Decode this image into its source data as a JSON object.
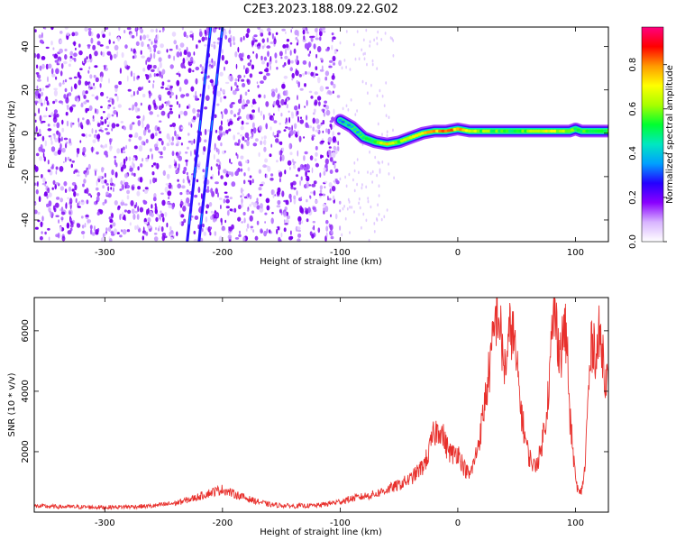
{
  "title": "C2E3.2023.188.09.22.G02",
  "chart_data": [
    {
      "type": "heatmap",
      "xlabel": "Height of straight line (km)",
      "ylabel": "Frequency (Hz)",
      "xlim": [
        -360,
        128
      ],
      "ylim": [
        -50,
        49
      ],
      "x_ticks": [
        -300,
        -200,
        -100,
        0,
        100
      ],
      "x_tick_labels": [
        "-300",
        "-200",
        "-100",
        "0",
        "100"
      ],
      "y_ticks": [
        -40,
        -20,
        0,
        20,
        40
      ],
      "y_tick_labels": [
        "-40",
        "-20",
        "0",
        "20",
        "40"
      ],
      "colorbar": {
        "label": "Normalized spectral amplitude",
        "range": [
          0,
          0.97
        ],
        "ticks": [
          0,
          0.2,
          0.4,
          0.6,
          0.8
        ],
        "tick_labels": [
          "0.0",
          "0.2",
          "0.4",
          "0.6",
          "0.8"
        ],
        "colors": [
          "#ffffff",
          "#d8b4ff",
          "#8a00ff",
          "#2400ff",
          "#00a0ff",
          "#00e8c0",
          "#00ff30",
          "#a8ff00",
          "#ffff00",
          "#ff9a00",
          "#ff0000",
          "#ff0080"
        ]
      },
      "noise_region": {
        "x_range": [
          -360,
          -100
        ],
        "level": 0.1
      },
      "streaks": [
        {
          "x_top": -210,
          "x_bottom": -230
        },
        {
          "x_top": -200,
          "x_bottom": -220
        }
      ],
      "signal_trace": {
        "x": [
          -100,
          -90,
          -80,
          -70,
          -60,
          -50,
          -40,
          -30,
          -20,
          -10,
          0,
          10,
          20,
          40,
          60,
          80,
          90,
          95,
          100,
          105,
          110,
          120,
          128
        ],
        "frequency": [
          6,
          3,
          -2,
          -4,
          -5,
          -4,
          -2,
          0,
          1,
          1,
          2,
          1,
          1,
          1,
          1,
          1,
          1,
          1,
          2,
          1,
          1,
          1,
          1
        ],
        "amplitude": [
          0.3,
          0.4,
          0.45,
          0.6,
          0.75,
          0.6,
          0.7,
          0.75,
          0.8,
          0.85,
          0.8,
          0.75,
          0.6,
          0.55,
          0.6,
          0.7,
          0.65,
          0.6,
          0.55,
          0.5,
          0.6,
          0.55,
          0.5
        ]
      }
    },
    {
      "type": "line",
      "xlabel": "Height of straight line (km)",
      "ylabel": "SNR (10 * v/v)",
      "xlim": [
        -360,
        128
      ],
      "ylim": [
        0,
        7100
      ],
      "x_ticks": [
        -300,
        -200,
        -100,
        0,
        100
      ],
      "x_tick_labels": [
        "-300",
        "-200",
        "-100",
        "0",
        "100"
      ],
      "y_ticks": [
        2000,
        4000,
        6000
      ],
      "y_tick_labels": [
        "2000",
        "4000",
        "6000"
      ],
      "color": "#e8302c",
      "series": [
        {
          "x": [
            -360,
            -340,
            -320,
            -300,
            -280,
            -260,
            -240,
            -225,
            -210,
            -200,
            -190,
            -175,
            -160,
            -140,
            -120,
            -110,
            -100,
            -90,
            -80,
            -70,
            -60,
            -50,
            -40,
            -35,
            -30,
            -25,
            -22,
            -20,
            -15,
            -10,
            -5,
            0,
            5,
            10,
            15,
            20,
            25,
            30,
            33,
            35,
            38,
            40,
            43,
            45,
            48,
            50,
            55,
            60,
            65,
            70,
            75,
            78,
            80,
            82,
            85,
            88,
            90,
            93,
            95,
            98,
            100,
            103,
            105,
            108,
            110,
            113,
            115,
            118,
            120,
            123,
            125,
            128
          ],
          "y": [
            200,
            180,
            170,
            160,
            180,
            200,
            300,
            450,
            650,
            750,
            600,
            400,
            250,
            200,
            220,
            280,
            350,
            450,
            520,
            600,
            750,
            900,
            1100,
            1300,
            1500,
            1900,
            2400,
            2600,
            2800,
            2200,
            1900,
            2000,
            1500,
            1200,
            1800,
            2800,
            4200,
            5600,
            6700,
            6500,
            5200,
            4800,
            5400,
            6300,
            5600,
            4800,
            3000,
            1900,
            1500,
            1900,
            3200,
            4500,
            5800,
            6600,
            5800,
            5200,
            6200,
            5500,
            3200,
            2000,
            1100,
            600,
            700,
            1400,
            3200,
            5200,
            5800,
            5100,
            5800,
            5400,
            4700,
            4100
          ]
        }
      ]
    }
  ]
}
